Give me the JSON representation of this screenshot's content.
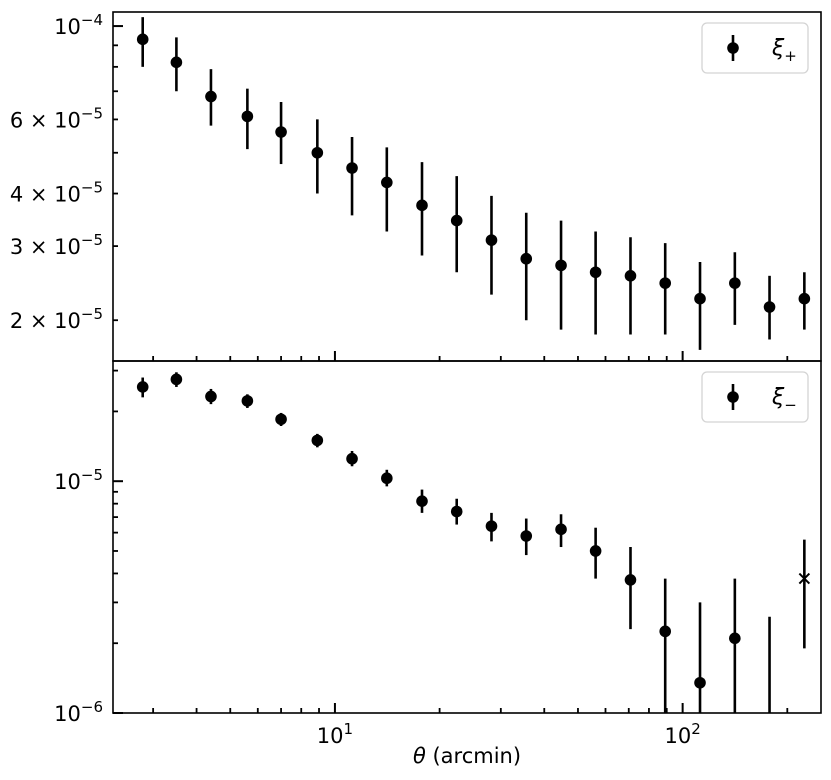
{
  "chart_data": [
    {
      "type": "scatter",
      "panel": "top",
      "x_scale": "log",
      "y_scale": "log",
      "xlim": [
        2.3,
        250
      ],
      "ylim": [
        1.6e-05,
        0.000108
      ],
      "yticks": [
        {
          "value": 0.0001,
          "base": "10",
          "exp": "−4"
        },
        {
          "value": 6e-05,
          "mant": "6",
          "base": "10",
          "exp": "−5"
        },
        {
          "value": 4e-05,
          "mant": "4",
          "base": "10",
          "exp": "−5"
        },
        {
          "value": 3e-05,
          "mant": "3",
          "base": "10",
          "exp": "−5"
        },
        {
          "value": 2e-05,
          "mant": "2",
          "base": "10",
          "exp": "−5"
        }
      ],
      "legend": {
        "position": "top-right",
        "symbol": "ξ",
        "subscript": "+"
      },
      "series": [
        {
          "marker": "circle",
          "color": "#000000",
          "points": [
            {
              "x": 2.8,
              "y": 9.3e-05,
              "lo": 8e-05,
              "hi": 0.000105
            },
            {
              "x": 3.5,
              "y": 8.2e-05,
              "lo": 7e-05,
              "hi": 9.4e-05
            },
            {
              "x": 4.4,
              "y": 6.8e-05,
              "lo": 5.8e-05,
              "hi": 7.9e-05
            },
            {
              "x": 5.6,
              "y": 6.1e-05,
              "lo": 5.1e-05,
              "hi": 7.1e-05
            },
            {
              "x": 7.0,
              "y": 5.6e-05,
              "lo": 4.7e-05,
              "hi": 6.6e-05
            },
            {
              "x": 8.9,
              "y": 5e-05,
              "lo": 4e-05,
              "hi": 6e-05
            },
            {
              "x": 11.2,
              "y": 4.6e-05,
              "lo": 3.55e-05,
              "hi": 5.45e-05
            },
            {
              "x": 14.1,
              "y": 4.25e-05,
              "lo": 3.25e-05,
              "hi": 5.15e-05
            },
            {
              "x": 17.8,
              "y": 3.75e-05,
              "lo": 2.85e-05,
              "hi": 4.75e-05
            },
            {
              "x": 22.4,
              "y": 3.45e-05,
              "lo": 2.6e-05,
              "hi": 4.4e-05
            },
            {
              "x": 28.2,
              "y": 3.1e-05,
              "lo": 2.3e-05,
              "hi": 3.95e-05
            },
            {
              "x": 35.5,
              "y": 2.8e-05,
              "lo": 2e-05,
              "hi": 3.6e-05
            },
            {
              "x": 44.7,
              "y": 2.7e-05,
              "lo": 1.9e-05,
              "hi": 3.45e-05
            },
            {
              "x": 56.2,
              "y": 2.6e-05,
              "lo": 1.85e-05,
              "hi": 3.25e-05
            },
            {
              "x": 70.8,
              "y": 2.55e-05,
              "lo": 1.85e-05,
              "hi": 3.15e-05
            },
            {
              "x": 89.1,
              "y": 2.45e-05,
              "lo": 1.85e-05,
              "hi": 3.05e-05
            },
            {
              "x": 112.2,
              "y": 2.25e-05,
              "lo": 1.7e-05,
              "hi": 2.75e-05
            },
            {
              "x": 141.3,
              "y": 2.45e-05,
              "lo": 1.95e-05,
              "hi": 2.9e-05
            },
            {
              "x": 177.8,
              "y": 2.15e-05,
              "lo": 1.8e-05,
              "hi": 2.55e-05
            },
            {
              "x": 223.9,
              "y": 2.25e-05,
              "lo": 1.9e-05,
              "hi": 2.6e-05
            }
          ]
        }
      ]
    },
    {
      "type": "scatter",
      "panel": "bottom",
      "x_scale": "log",
      "y_scale": "log",
      "xlim": [
        2.3,
        250
      ],
      "ylim": [
        1e-06,
        3.3e-05
      ],
      "yticks": [
        {
          "value": 1e-05,
          "base": "10",
          "exp": "−5"
        },
        {
          "value": 1e-06,
          "base": "10",
          "exp": "−6"
        }
      ],
      "xticks": [
        {
          "value": 10,
          "base": "10",
          "exp": "1"
        },
        {
          "value": 100,
          "base": "10",
          "exp": "2"
        }
      ],
      "xlabel": {
        "symbol": "θ",
        "text": " (arcmin)"
      },
      "legend": {
        "position": "top-right",
        "symbol": "ξ",
        "subscript": "−"
      },
      "series": [
        {
          "marker": "circle",
          "color": "#000000",
          "points": [
            {
              "x": 2.8,
              "y": 2.55e-05,
              "lo": 2.3e-05,
              "hi": 2.8e-05
            },
            {
              "x": 3.5,
              "y": 2.75e-05,
              "lo": 2.55e-05,
              "hi": 2.95e-05
            },
            {
              "x": 4.4,
              "y": 2.32e-05,
              "lo": 2.15e-05,
              "hi": 2.5e-05
            },
            {
              "x": 5.6,
              "y": 2.22e-05,
              "lo": 2.07e-05,
              "hi": 2.37e-05
            },
            {
              "x": 7.0,
              "y": 1.85e-05,
              "lo": 1.73e-05,
              "hi": 1.97e-05
            },
            {
              "x": 8.9,
              "y": 1.5e-05,
              "lo": 1.4e-05,
              "hi": 1.6e-05
            },
            {
              "x": 11.2,
              "y": 1.25e-05,
              "lo": 1.16e-05,
              "hi": 1.35e-05
            },
            {
              "x": 14.1,
              "y": 1.03e-05,
              "lo": 9.5e-06,
              "hi": 1.12e-05
            },
            {
              "x": 17.8,
              "y": 8.2e-06,
              "lo": 7.3e-06,
              "hi": 9.2e-06
            },
            {
              "x": 22.4,
              "y": 7.4e-06,
              "lo": 6.5e-06,
              "hi": 8.4e-06
            },
            {
              "x": 28.2,
              "y": 6.4e-06,
              "lo": 5.5e-06,
              "hi": 7.3e-06
            },
            {
              "x": 35.5,
              "y": 5.8e-06,
              "lo": 4.8e-06,
              "hi": 6.9e-06
            },
            {
              "x": 44.7,
              "y": 6.2e-06,
              "lo": 5.2e-06,
              "hi": 7.2e-06
            },
            {
              "x": 56.2,
              "y": 5e-06,
              "lo": 3.8e-06,
              "hi": 6.3e-06
            },
            {
              "x": 70.8,
              "y": 3.75e-06,
              "lo": 2.3e-06,
              "hi": 5.2e-06
            },
            {
              "x": 89.1,
              "y": 2.25e-06,
              "lo": 1e-06,
              "hi": 3.8e-06
            },
            {
              "x": 112.2,
              "y": 1.35e-06,
              "lo": 1e-06,
              "hi": 3e-06
            },
            {
              "x": 141.3,
              "y": 2.1e-06,
              "lo": 1e-06,
              "hi": 3.8e-06
            },
            {
              "x": 177.8,
              "y": null,
              "lo": 1e-06,
              "hi": 2.6e-06
            }
          ]
        },
        {
          "marker": "x",
          "color": "#000000",
          "points": [
            {
              "x": 223.9,
              "y": 3.8e-06,
              "lo": 1.9e-06,
              "hi": 5.6e-06
            }
          ]
        }
      ]
    }
  ]
}
